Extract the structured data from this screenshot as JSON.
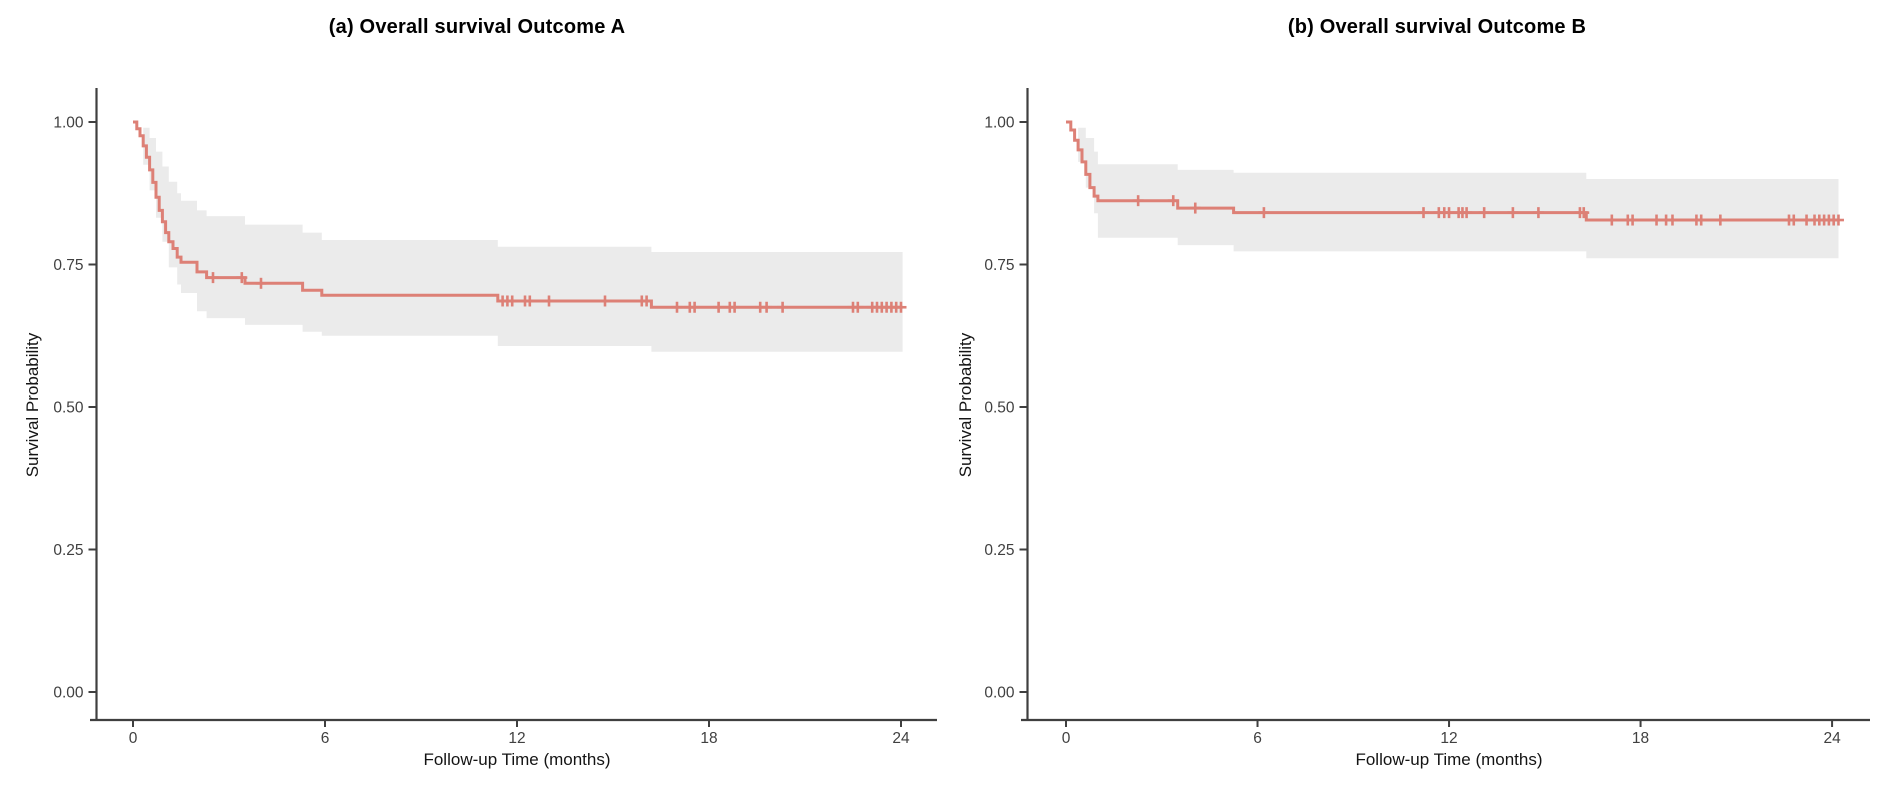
{
  "chart_data": [
    {
      "type": "line",
      "subtype": "kaplan-meier-step",
      "title": "(a) Overall survival Outcome A",
      "xlabel": "Follow-up Time (months)",
      "ylabel": "Survival Probability",
      "xlim": [
        0,
        24.2
      ],
      "ylim": [
        0,
        1.05
      ],
      "grid": false,
      "legend": "none",
      "xticks": [
        "0",
        "6",
        "12",
        "18",
        "24"
      ],
      "xtick_values": [
        0,
        6,
        12,
        18,
        24
      ],
      "ytick_labels": [
        "0.00",
        "0.25",
        "0.50",
        "0.75",
        "1.00"
      ],
      "ytick_values": [
        0,
        0.25,
        0.5,
        0.75,
        1.0
      ],
      "line_color": "#DD8076",
      "ci_band_color": "#EBEBEB",
      "t_end": 24.05,
      "survival_steps": [
        [
          0,
          1.0
        ],
        [
          0.12,
          0.988
        ],
        [
          0.22,
          0.976
        ],
        [
          0.32,
          0.958
        ],
        [
          0.42,
          0.938
        ],
        [
          0.52,
          0.916
        ],
        [
          0.62,
          0.894
        ],
        [
          0.72,
          0.868
        ],
        [
          0.82,
          0.845
        ],
        [
          0.92,
          0.825
        ],
        [
          1.02,
          0.806
        ],
        [
          1.12,
          0.79
        ],
        [
          1.25,
          0.778
        ],
        [
          1.38,
          0.763
        ],
        [
          1.5,
          0.754
        ],
        [
          2.0,
          0.737
        ],
        [
          2.3,
          0.727
        ],
        [
          3.5,
          0.717
        ],
        [
          5.3,
          0.705
        ],
        [
          5.9,
          0.696
        ],
        [
          11.4,
          0.686
        ],
        [
          16.2,
          0.675
        ]
      ],
      "ci_upper_steps": [
        [
          0,
          1.0
        ],
        [
          0.32,
          0.99
        ],
        [
          0.52,
          0.972
        ],
        [
          0.72,
          0.948
        ],
        [
          0.92,
          0.922
        ],
        [
          1.12,
          0.895
        ],
        [
          1.38,
          0.875
        ],
        [
          1.5,
          0.862
        ],
        [
          2.0,
          0.845
        ],
        [
          2.3,
          0.835
        ],
        [
          3.5,
          0.82
        ],
        [
          5.3,
          0.806
        ],
        [
          5.9,
          0.793
        ],
        [
          11.4,
          0.781
        ],
        [
          16.2,
          0.772
        ]
      ],
      "ci_lower_steps": [
        [
          0,
          1.0
        ],
        [
          0.32,
          0.925
        ],
        [
          0.52,
          0.88
        ],
        [
          0.72,
          0.832
        ],
        [
          0.92,
          0.79
        ],
        [
          1.12,
          0.745
        ],
        [
          1.38,
          0.715
        ],
        [
          1.5,
          0.7
        ],
        [
          2.0,
          0.668
        ],
        [
          2.3,
          0.656
        ],
        [
          3.5,
          0.644
        ],
        [
          5.3,
          0.632
        ],
        [
          5.9,
          0.625
        ],
        [
          11.4,
          0.607
        ],
        [
          16.2,
          0.597
        ]
      ],
      "censor_times": [
        2.5,
        3.4,
        4.0,
        11.55,
        11.7,
        11.85,
        12.25,
        12.4,
        13.0,
        14.75,
        15.9,
        16.05,
        17.0,
        17.4,
        17.55,
        18.3,
        18.65,
        18.8,
        19.6,
        19.8,
        20.3,
        22.5,
        22.65,
        23.1,
        23.25,
        23.4,
        23.55,
        23.7,
        23.85,
        24.0
      ]
    },
    {
      "type": "line",
      "subtype": "kaplan-meier-step",
      "title": "(b) Overall survival Outcome B",
      "xlabel": "Follow-up Time (months)",
      "ylabel": "Survival Probability",
      "xlim": [
        0,
        24.2
      ],
      "ylim": [
        0,
        1.05
      ],
      "grid": false,
      "legend": "none",
      "xticks": [
        "0",
        "6",
        "12",
        "18",
        "24"
      ],
      "xtick_values": [
        0,
        6,
        12,
        18,
        24
      ],
      "ytick_labels": [
        "0.00",
        "0.25",
        "0.50",
        "0.75",
        "1.00"
      ],
      "ytick_values": [
        0,
        0.25,
        0.5,
        0.75,
        1.0
      ],
      "line_color": "#DD8076",
      "ci_band_color": "#EBEBEB",
      "t_end": 24.2,
      "survival_steps": [
        [
          0,
          1.0
        ],
        [
          0.15,
          0.986
        ],
        [
          0.27,
          0.968
        ],
        [
          0.38,
          0.951
        ],
        [
          0.5,
          0.93
        ],
        [
          0.62,
          0.908
        ],
        [
          0.75,
          0.885
        ],
        [
          0.88,
          0.87
        ],
        [
          1.0,
          0.862
        ],
        [
          3.5,
          0.849
        ],
        [
          5.25,
          0.841
        ],
        [
          16.3,
          0.828
        ]
      ],
      "ci_upper_steps": [
        [
          0,
          1.0
        ],
        [
          0.38,
          0.99
        ],
        [
          0.62,
          0.972
        ],
        [
          0.88,
          0.948
        ],
        [
          1.0,
          0.926
        ],
        [
          3.5,
          0.916
        ],
        [
          5.25,
          0.911
        ],
        [
          16.3,
          0.9
        ]
      ],
      "ci_lower_steps": [
        [
          0,
          1.0
        ],
        [
          0.38,
          0.93
        ],
        [
          0.62,
          0.885
        ],
        [
          0.88,
          0.84
        ],
        [
          1.0,
          0.797
        ],
        [
          3.5,
          0.784
        ],
        [
          5.25,
          0.773
        ],
        [
          16.3,
          0.761
        ]
      ],
      "censor_times": [
        2.26,
        3.36,
        4.05,
        6.2,
        11.2,
        11.68,
        11.85,
        12.0,
        12.3,
        12.42,
        12.55,
        13.1,
        14.0,
        14.8,
        16.1,
        16.22,
        17.1,
        17.6,
        17.75,
        18.5,
        18.8,
        19.0,
        19.75,
        19.9,
        20.5,
        22.65,
        22.8,
        23.2,
        23.45,
        23.6,
        23.75,
        23.9,
        24.05,
        24.2
      ]
    }
  ]
}
